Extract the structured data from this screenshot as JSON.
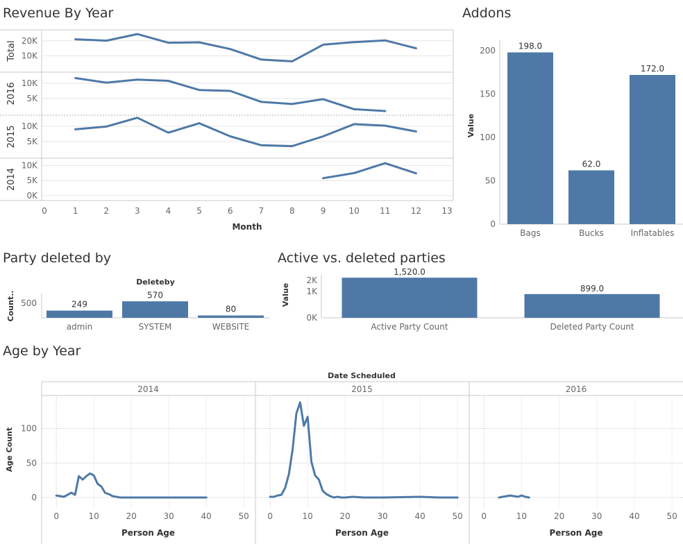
{
  "colors": {
    "mark": "#4e79a7",
    "axis_text": "#666666",
    "label_text": "#333333",
    "grid": "#e6e6e6",
    "border": "#c8c8c8"
  },
  "titles": {
    "revenue": "Revenue By Year",
    "addons": "Addons",
    "deleted_by": "Party deleted by",
    "active_deleted": "Active vs. deleted parties",
    "age": "Age by Year"
  },
  "chart_data": [
    {
      "id": "revenue",
      "type": "line",
      "title": "Revenue By Year",
      "xlabel": "Month",
      "xlim": [
        0,
        13
      ],
      "x_ticks": [
        "0",
        "1",
        "2",
        "3",
        "4",
        "5",
        "6",
        "7",
        "8",
        "9",
        "10",
        "11",
        "12",
        "13"
      ],
      "rows": [
        {
          "name": "Total",
          "ylim": [
            0,
            25000
          ],
          "y_ticks": [
            {
              "v": 10000,
              "label": "10K"
            },
            {
              "v": 20000,
              "label": "20K"
            }
          ],
          "points": [
            [
              1,
              21000
            ],
            [
              2,
              20100
            ],
            [
              3,
              24500
            ],
            [
              4,
              18700
            ],
            [
              5,
              19000
            ],
            [
              6,
              14500
            ],
            [
              7,
              7500
            ],
            [
              8,
              6300
            ],
            [
              9,
              17400
            ],
            [
              10,
              19100
            ],
            [
              11,
              20300
            ],
            [
              12,
              15000
            ]
          ]
        },
        {
          "name": "2016",
          "ylim": [
            0,
            12500
          ],
          "y_ticks": [
            {
              "v": 5000,
              "label": "5K"
            },
            {
              "v": 10000,
              "label": "10K"
            }
          ],
          "points": [
            [
              1,
              11700
            ],
            [
              2,
              10200
            ],
            [
              3,
              11200
            ],
            [
              4,
              10800
            ],
            [
              5,
              7800
            ],
            [
              6,
              7500
            ],
            [
              7,
              3900
            ],
            [
              8,
              3200
            ],
            [
              9,
              4800
            ],
            [
              10,
              1500
            ],
            [
              11,
              900
            ]
          ]
        },
        {
          "name": "2015",
          "ylim": [
            0,
            12500
          ],
          "y_ticks": [
            {
              "v": 5000,
              "label": "5K"
            },
            {
              "v": 10000,
              "label": "10K"
            }
          ],
          "points": [
            [
              1,
              9000
            ],
            [
              2,
              9900
            ],
            [
              3,
              12800
            ],
            [
              4,
              7900
            ],
            [
              5,
              11000
            ],
            [
              6,
              6700
            ],
            [
              7,
              3800
            ],
            [
              8,
              3500
            ],
            [
              9,
              6700
            ],
            [
              10,
              10700
            ],
            [
              11,
              10200
            ],
            [
              12,
              8300
            ]
          ]
        },
        {
          "name": "2014",
          "ylim": [
            -1200,
            11300
          ],
          "y_ticks": [
            {
              "v": 0,
              "label": "0K"
            },
            {
              "v": 5000,
              "label": "5K"
            },
            {
              "v": 10000,
              "label": "10K"
            }
          ],
          "points": [
            [
              9,
              5800
            ],
            [
              10,
              7500
            ],
            [
              11,
              10800
            ],
            [
              12,
              7400
            ]
          ]
        }
      ]
    },
    {
      "id": "addons",
      "type": "bar",
      "title": "Addons",
      "ylabel": "Value",
      "ylim": [
        0,
        212
      ],
      "y_ticks": [
        0,
        50,
        100,
        150,
        200
      ],
      "categories": [
        "Bags",
        "Bucks",
        "Inflatables"
      ],
      "values": [
        198,
        62,
        172
      ],
      "value_labels": [
        "198.0",
        "62.0",
        "172.0"
      ]
    },
    {
      "id": "deleted_by",
      "type": "bar",
      "title": "Party deleted by",
      "header": "Deleteby",
      "ylabel": "Count..",
      "ylim": [
        0,
        600
      ],
      "y_ticks": [
        {
          "v": 500,
          "label": "500"
        }
      ],
      "categories": [
        "admin",
        "SYSTEM",
        "WEBSITE"
      ],
      "values": [
        249,
        570,
        80
      ],
      "value_labels": [
        "249",
        "570",
        "80"
      ]
    },
    {
      "id": "active_deleted",
      "type": "bar",
      "title": "Active vs. deleted parties",
      "ylabel": "Value",
      "ylim": [
        0,
        1630
      ],
      "y_ticks": [
        {
          "v": 0,
          "label": "0K"
        },
        {
          "v": 1000,
          "label": "1K"
        },
        {
          "v": 2000,
          "label": "2K"
        }
      ],
      "categories": [
        "Active Party Count",
        "Deleted Party Count"
      ],
      "values": [
        1520,
        899
      ],
      "value_labels": [
        "1,520.0",
        "899.0"
      ]
    },
    {
      "id": "age",
      "type": "line",
      "title": "Age by Year",
      "header": "Date Scheduled",
      "xlabel": "Person Age",
      "ylabel": "Age Count",
      "xlim": [
        -3,
        52
      ],
      "ylim": [
        -5,
        148
      ],
      "x_ticks": [
        0,
        10,
        20,
        30,
        40,
        50
      ],
      "y_ticks": [
        0,
        50,
        100
      ],
      "panels": [
        {
          "name": "2014",
          "points": [
            [
              0,
              3
            ],
            [
              1,
              2
            ],
            [
              2,
              1
            ],
            [
              4,
              7
            ],
            [
              5,
              4
            ],
            [
              6,
              31
            ],
            [
              7,
              26
            ],
            [
              8,
              31
            ],
            [
              9,
              35
            ],
            [
              10,
              32
            ],
            [
              11,
              20
            ],
            [
              12,
              16
            ],
            [
              13,
              7
            ],
            [
              14,
              5
            ],
            [
              15,
              2
            ],
            [
              16,
              1
            ],
            [
              17,
              0
            ],
            [
              20,
              0
            ],
            [
              25,
              0
            ],
            [
              30,
              0
            ],
            [
              35,
              0
            ],
            [
              40,
              0
            ]
          ]
        },
        {
          "name": "2015",
          "points": [
            [
              0,
              1
            ],
            [
              1,
              1
            ],
            [
              2,
              3
            ],
            [
              3,
              4
            ],
            [
              4,
              14
            ],
            [
              5,
              34
            ],
            [
              6,
              70
            ],
            [
              7,
              122
            ],
            [
              8,
              138
            ],
            [
              9,
              104
            ],
            [
              10,
              117
            ],
            [
              11,
              52
            ],
            [
              12,
              32
            ],
            [
              13,
              26
            ],
            [
              14,
              10
            ],
            [
              15,
              5
            ],
            [
              16,
              2
            ],
            [
              17,
              0
            ],
            [
              18,
              1
            ],
            [
              19,
              0
            ],
            [
              20,
              0
            ],
            [
              22,
              1
            ],
            [
              25,
              0
            ],
            [
              30,
              0
            ],
            [
              35,
              0.5
            ],
            [
              40,
              1
            ],
            [
              45,
              0
            ],
            [
              50,
              0
            ]
          ]
        },
        {
          "name": "2016",
          "points": [
            [
              4,
              0
            ],
            [
              5,
              1
            ],
            [
              6,
              2
            ],
            [
              7,
              3
            ],
            [
              8,
              2
            ],
            [
              9,
              1
            ],
            [
              10,
              3
            ],
            [
              11,
              1
            ],
            [
              12,
              0
            ]
          ]
        }
      ]
    }
  ]
}
